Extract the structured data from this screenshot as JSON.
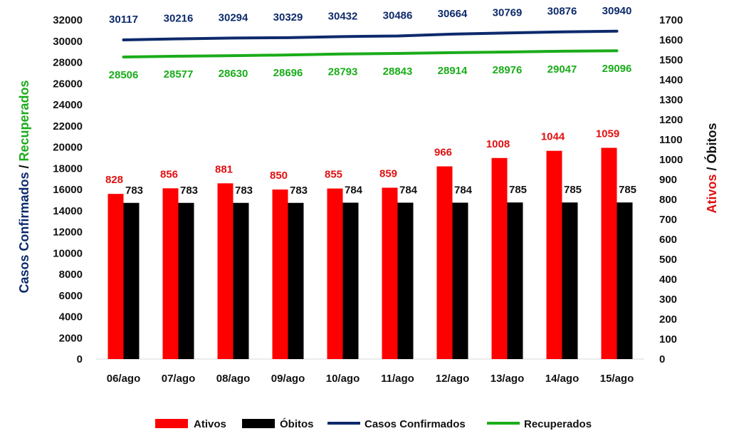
{
  "chart_data": {
    "type": "bar",
    "categories": [
      "06/ago",
      "07/ago",
      "08/ago",
      "09/ago",
      "10/ago",
      "11/ago",
      "12/ago",
      "13/ago",
      "14/ago",
      "15/ago"
    ],
    "left_axis": {
      "title_part1": "Casos Confirmados",
      "title_sep": " / ",
      "title_part2": "Recuperados",
      "range": [
        0,
        32000
      ],
      "ticks": [
        0,
        2000,
        4000,
        6000,
        8000,
        10000,
        12000,
        14000,
        16000,
        18000,
        20000,
        22000,
        24000,
        26000,
        28000,
        30000,
        32000
      ]
    },
    "right_axis": {
      "title_part1": "Ativos",
      "title_sep": " / ",
      "title_part2": "Óbitos",
      "range": [
        0,
        1700
      ],
      "ticks": [
        0,
        100,
        200,
        300,
        400,
        500,
        600,
        700,
        800,
        900,
        1000,
        1100,
        1200,
        1300,
        1400,
        1500,
        1600,
        1700
      ]
    },
    "series": [
      {
        "name": "Ativos",
        "type": "bar",
        "axis": "right",
        "color": "#ff0000",
        "label_color": "#e01010",
        "values": [
          828,
          856,
          881,
          850,
          855,
          859,
          966,
          1008,
          1044,
          1059
        ]
      },
      {
        "name": "Óbitos",
        "type": "bar",
        "axis": "right",
        "color": "#000000",
        "label_color": "#111111",
        "values": [
          783,
          783,
          783,
          783,
          784,
          784,
          784,
          785,
          785,
          785
        ]
      },
      {
        "name": "Casos Confirmados",
        "type": "line",
        "axis": "left",
        "color": "#0d2a6b",
        "label_color": "#0d2a6b",
        "values": [
          30117,
          30216,
          30294,
          30329,
          30432,
          30486,
          30664,
          30769,
          30876,
          30940
        ]
      },
      {
        "name": "Recuperados",
        "type": "line",
        "axis": "left",
        "color": "#1aac1a",
        "label_color": "#1aac1a",
        "values": [
          28506,
          28577,
          28630,
          28696,
          28793,
          28843,
          28914,
          28976,
          29047,
          29096
        ]
      }
    ],
    "grid": false,
    "legend_position": "bottom"
  }
}
